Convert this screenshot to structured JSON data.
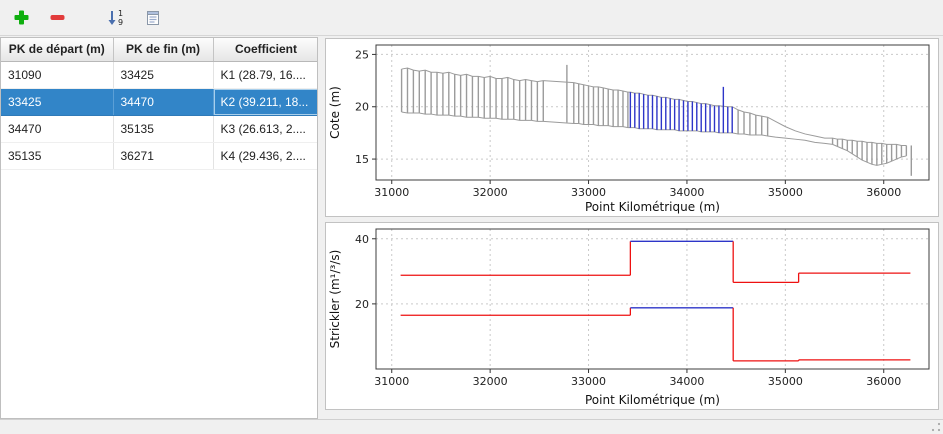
{
  "toolbar": {
    "buttons": [
      {
        "label": "add-line",
        "icon": "plus-icon",
        "color": "#0faf0f"
      },
      {
        "label": "remove-line",
        "icon": "minus-icon",
        "color": "#e23b3b"
      },
      {
        "label": "sort-numeric",
        "icon": "sort-numeric-icon",
        "digit_top": "1",
        "digit_bottom": "9"
      },
      {
        "label": "report",
        "icon": "report-icon"
      }
    ]
  },
  "table": {
    "columns": [
      "PK de départ (m)",
      "PK de fin (m)",
      "Coefficient"
    ],
    "rows": [
      {
        "start": "31090",
        "end": "33425",
        "coefficient": "K1 (28.79, 16...."
      },
      {
        "start": "33425",
        "end": "34470",
        "coefficient": "K2 (39.211, 18..."
      },
      {
        "start": "34470",
        "end": "35135",
        "coefficient": "K3 (26.613, 2...."
      },
      {
        "start": "35135",
        "end": "36271",
        "coefficient": "K4 (29.436, 2...."
      }
    ],
    "selected_index": 1,
    "selection_color": "#3285c8"
  },
  "chart_data": [
    {
      "type": "bar",
      "subtype": "cross-section-profile",
      "title": "",
      "xlabel": "Point Kilométrique (m)",
      "ylabel": "Cote (m)",
      "xlim": [
        30840,
        36460
      ],
      "ylim": [
        13.0,
        25.9
      ],
      "xticks": [
        31000,
        32000,
        33000,
        34000,
        35000,
        36000
      ],
      "yticks": [
        15,
        20,
        25
      ],
      "grid": "dashed",
      "bar_color": "#9b9b9b",
      "highlight_color": "#2d35c8",
      "highlight_range": [
        33425,
        34470
      ],
      "section_format": "[pk, z_top, z_bottom, code] code: 0=bar, 1=envelope-only point, 2=bar excluded from envelope",
      "sections": [
        [
          31100,
          23.6,
          19.5
        ],
        [
          31160,
          23.7,
          19.4
        ],
        [
          31220,
          23.5,
          19.4
        ],
        [
          31280,
          23.4,
          19.4
        ],
        [
          31340,
          23.5,
          19.3
        ],
        [
          31400,
          23.3,
          19.3
        ],
        [
          31460,
          23.3,
          19.2
        ],
        [
          31520,
          23.2,
          19.2
        ],
        [
          31580,
          23.3,
          19.2
        ],
        [
          31640,
          23.1,
          19.1
        ],
        [
          31700,
          23.0,
          19.1
        ],
        [
          31760,
          23.1,
          19.0
        ],
        [
          31820,
          22.9,
          19.0
        ],
        [
          31880,
          22.9,
          19.0
        ],
        [
          31940,
          22.8,
          18.9
        ],
        [
          32000,
          22.9,
          18.9
        ],
        [
          32060,
          22.7,
          18.9
        ],
        [
          32120,
          22.7,
          18.8
        ],
        [
          32180,
          22.8,
          18.8
        ],
        [
          32240,
          22.6,
          18.8
        ],
        [
          32300,
          22.5,
          18.7
        ],
        [
          32360,
          22.6,
          18.7
        ],
        [
          32420,
          22.5,
          18.7
        ],
        [
          32480,
          22.4,
          18.6
        ],
        [
          32540,
          22.5,
          18.6
        ],
        [
          32780,
          24.0,
          18.5,
          2
        ],
        [
          32850,
          22.3,
          18.4
        ],
        [
          32900,
          22.2,
          18.4
        ],
        [
          32950,
          22.1,
          18.3
        ],
        [
          33000,
          22.0,
          18.3
        ],
        [
          33050,
          21.9,
          18.3
        ],
        [
          33100,
          21.9,
          18.2
        ],
        [
          33150,
          21.8,
          18.2
        ],
        [
          33200,
          21.7,
          18.2
        ],
        [
          33250,
          21.6,
          18.1
        ],
        [
          33300,
          21.6,
          18.1
        ],
        [
          33350,
          21.5,
          18.1
        ],
        [
          33400,
          21.4,
          18.0
        ],
        [
          33425,
          21.4,
          18.0
        ],
        [
          33470,
          21.3,
          18.0
        ],
        [
          33515,
          21.3,
          17.9
        ],
        [
          33560,
          21.2,
          17.9
        ],
        [
          33605,
          21.1,
          17.9
        ],
        [
          33650,
          21.1,
          17.9
        ],
        [
          33695,
          21.0,
          17.8
        ],
        [
          33740,
          20.9,
          17.8
        ],
        [
          33785,
          20.9,
          17.8
        ],
        [
          33830,
          20.8,
          17.8
        ],
        [
          33875,
          20.7,
          17.8
        ],
        [
          33920,
          20.7,
          17.7
        ],
        [
          33965,
          20.6,
          17.7
        ],
        [
          34010,
          20.5,
          17.7
        ],
        [
          34055,
          20.5,
          17.7
        ],
        [
          34100,
          20.4,
          17.7
        ],
        [
          34145,
          20.3,
          17.6
        ],
        [
          34190,
          20.3,
          17.6
        ],
        [
          34235,
          20.2,
          17.6
        ],
        [
          34280,
          20.1,
          17.6
        ],
        [
          34325,
          20.1,
          17.5
        ],
        [
          34370,
          21.9,
          17.5,
          2
        ],
        [
          34415,
          20.0,
          17.5
        ],
        [
          34460,
          20.0,
          17.5
        ],
        [
          34520,
          19.7,
          17.4
        ],
        [
          34580,
          19.5,
          17.4
        ],
        [
          34640,
          19.4,
          17.3
        ],
        [
          34700,
          19.2,
          17.3
        ],
        [
          34760,
          19.1,
          17.3
        ],
        [
          34820,
          19.0,
          17.2
        ],
        [
          34900,
          18.6,
          17.1,
          1
        ],
        [
          35000,
          18.1,
          17.0,
          1
        ],
        [
          35100,
          17.7,
          16.9,
          1
        ],
        [
          35200,
          17.4,
          16.8,
          1
        ],
        [
          35300,
          17.2,
          16.6,
          1
        ],
        [
          35400,
          17.0,
          16.5,
          1
        ],
        [
          35480,
          17.0,
          16.4
        ],
        [
          35530,
          16.9,
          16.2
        ],
        [
          35580,
          16.9,
          16.0
        ],
        [
          35630,
          16.8,
          15.8
        ],
        [
          35680,
          16.8,
          15.5
        ],
        [
          35730,
          16.7,
          15.2
        ],
        [
          35780,
          16.7,
          14.9
        ],
        [
          35830,
          16.6,
          14.7
        ],
        [
          35880,
          16.6,
          14.5
        ],
        [
          35930,
          16.5,
          14.4
        ],
        [
          35980,
          16.5,
          14.5
        ],
        [
          36030,
          16.4,
          14.6
        ],
        [
          36080,
          16.4,
          14.8
        ],
        [
          36130,
          16.4,
          15.0
        ],
        [
          36180,
          16.3,
          15.2
        ],
        [
          36230,
          16.3,
          15.3
        ],
        [
          36280,
          16.3,
          13.4,
          2
        ]
      ]
    },
    {
      "type": "line",
      "subtype": "step",
      "title": "",
      "xlabel": "Point Kilométrique (m)",
      "ylabel": "Strickler (m¹/³/s)",
      "xlim": [
        30840,
        36460
      ],
      "ylim": [
        0,
        43
      ],
      "xticks": [
        31000,
        32000,
        33000,
        34000,
        35000,
        36000
      ],
      "yticks": [
        20,
        40
      ],
      "grid": "dashed",
      "line_color": "#ee1111",
      "highlight_color": "#2d35c8",
      "series": [
        {
          "name": "strickler-lit-mineur",
          "segments": [
            {
              "from": 31090,
              "to": 33425,
              "value": 28.79,
              "highlight": false
            },
            {
              "from": 33425,
              "to": 34470,
              "value": 39.211,
              "highlight": true
            },
            {
              "from": 34470,
              "to": 35135,
              "value": 26.613,
              "highlight": false
            },
            {
              "from": 35135,
              "to": 36271,
              "value": 29.436,
              "highlight": false
            }
          ]
        },
        {
          "name": "strickler-lit-majeur",
          "segments": [
            {
              "from": 31090,
              "to": 33425,
              "value": 16.5,
              "highlight": false
            },
            {
              "from": 33425,
              "to": 34470,
              "value": 18.8,
              "highlight": true
            },
            {
              "from": 34470,
              "to": 35135,
              "value": 2.5,
              "highlight": false
            },
            {
              "from": 35135,
              "to": 36271,
              "value": 2.8,
              "highlight": false
            }
          ]
        }
      ]
    }
  ]
}
